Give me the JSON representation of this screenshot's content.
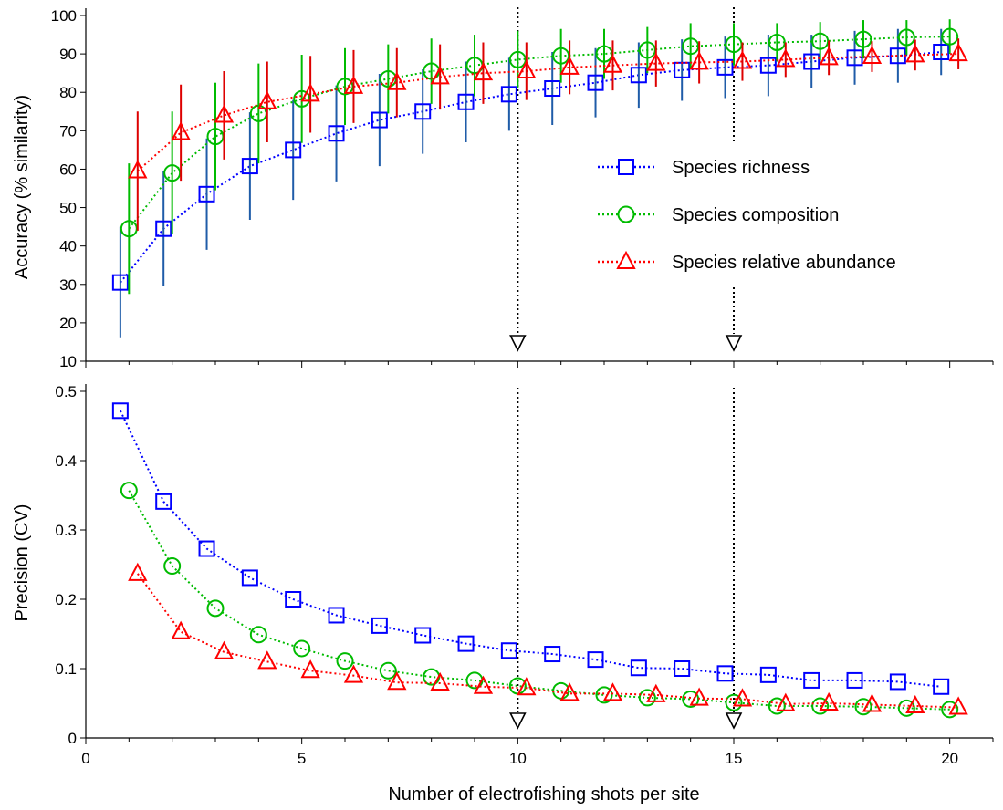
{
  "chart_data": [
    {
      "type": "scatter",
      "panel": "top",
      "ylabel": "Accuracy (% similarity)",
      "xlabel": "",
      "xlim": [
        0,
        21
      ],
      "ylim": [
        10,
        100
      ],
      "xticks": [
        0,
        5,
        10,
        15,
        20
      ],
      "yticks": [
        10,
        20,
        30,
        40,
        50,
        60,
        70,
        80,
        90,
        100
      ],
      "reference_lines_x": [
        10,
        15
      ],
      "legend_position": "right",
      "series": [
        {
          "name": "Species richness",
          "color": "#0000ff",
          "error_color": "#1f5ca8",
          "marker": "square",
          "x": [
            0.8,
            1.8,
            2.8,
            3.8,
            4.8,
            5.8,
            6.8,
            7.8,
            8.8,
            9.8,
            10.8,
            11.8,
            12.8,
            13.8,
            14.8,
            15.8,
            16.8,
            17.8,
            18.8,
            19.8
          ],
          "y": [
            30.5,
            44.5,
            53.5,
            60.8,
            65.0,
            69.3,
            72.8,
            75.0,
            77.5,
            79.5,
            81.0,
            82.5,
            84.5,
            85.8,
            86.5,
            87.0,
            88.0,
            89.0,
            89.5,
            90.5
          ],
          "err": [
            14.5,
            15.0,
            14.5,
            14.0,
            13.0,
            12.5,
            12.0,
            11.0,
            10.5,
            9.5,
            9.5,
            9.0,
            8.5,
            8.0,
            8.0,
            8.0,
            7.0,
            7.0,
            7.0,
            6.0
          ]
        },
        {
          "name": "Species composition",
          "color": "#00bb00",
          "error_color": "#00bb00",
          "marker": "circle",
          "x": [
            1.0,
            2.0,
            3.0,
            4.0,
            5.0,
            6.0,
            7.0,
            8.0,
            9.0,
            10.0,
            11.0,
            12.0,
            13.0,
            14.0,
            15.0,
            16.0,
            17.0,
            18.0,
            19.0,
            20.0
          ],
          "y": [
            44.5,
            59.0,
            68.5,
            74.5,
            78.3,
            81.5,
            83.5,
            85.5,
            87.0,
            88.5,
            89.5,
            90.0,
            91.0,
            92.0,
            92.5,
            93.0,
            93.3,
            93.8,
            94.3,
            94.5
          ],
          "err": [
            17.0,
            16.0,
            14.0,
            13.0,
            11.5,
            10.0,
            9.0,
            8.5,
            8.0,
            7.5,
            7.0,
            6.5,
            6.0,
            6.0,
            5.5,
            5.0,
            5.0,
            5.0,
            4.5,
            4.5
          ]
        },
        {
          "name": "Species relative abundance",
          "color": "#ff0000",
          "error_color": "#dd0000",
          "marker": "triangle",
          "x": [
            1.2,
            2.2,
            3.2,
            4.2,
            5.2,
            6.2,
            7.2,
            8.2,
            9.2,
            10.2,
            11.2,
            12.2,
            13.2,
            14.2,
            15.2,
            16.2,
            17.2,
            18.2,
            19.2,
            20.2
          ],
          "y": [
            59.5,
            69.5,
            74.0,
            77.5,
            79.5,
            81.5,
            82.5,
            84.0,
            85.0,
            85.5,
            86.5,
            87.0,
            87.5,
            87.8,
            88.0,
            88.5,
            89.0,
            89.3,
            89.7,
            90.0
          ],
          "err": [
            15.5,
            12.5,
            11.5,
            10.5,
            10.0,
            9.5,
            9.0,
            8.5,
            8.0,
            7.5,
            7.0,
            6.5,
            6.0,
            5.5,
            5.0,
            4.5,
            4.5,
            4.0,
            4.0,
            4.0
          ]
        }
      ]
    },
    {
      "type": "scatter",
      "panel": "bottom",
      "ylabel": "Precision (CV)",
      "xlabel": "Number of electrofishing shots per site",
      "xlim": [
        0,
        21
      ],
      "ylim": [
        0,
        0.5
      ],
      "xticks": [
        0,
        5,
        10,
        15,
        20
      ],
      "yticks": [
        0,
        0.1,
        0.2,
        0.3,
        0.4,
        0.5
      ],
      "ytick_labels": [
        "0",
        "0.1",
        "0.2",
        "0.3",
        "0.4",
        "0.5"
      ],
      "reference_lines_x": [
        10,
        15
      ],
      "series": [
        {
          "name": "Species richness",
          "color": "#0000ff",
          "marker": "square",
          "x": [
            0.8,
            1.8,
            2.8,
            3.8,
            4.8,
            5.8,
            6.8,
            7.8,
            8.8,
            9.8,
            10.8,
            11.8,
            12.8,
            13.8,
            14.8,
            15.8,
            16.8,
            17.8,
            18.8,
            19.8
          ],
          "y": [
            0.472,
            0.341,
            0.273,
            0.231,
            0.2,
            0.177,
            0.162,
            0.148,
            0.136,
            0.126,
            0.121,
            0.113,
            0.101,
            0.1,
            0.093,
            0.091,
            0.083,
            0.083,
            0.081,
            0.074
          ]
        },
        {
          "name": "Species composition",
          "color": "#00bb00",
          "marker": "circle",
          "x": [
            1.0,
            2.0,
            3.0,
            4.0,
            5.0,
            6.0,
            7.0,
            8.0,
            9.0,
            10.0,
            11.0,
            12.0,
            13.0,
            14.0,
            15.0,
            16.0,
            17.0,
            18.0,
            19.0,
            20.0
          ],
          "y": [
            0.357,
            0.248,
            0.187,
            0.149,
            0.129,
            0.111,
            0.097,
            0.088,
            0.083,
            0.075,
            0.068,
            0.062,
            0.058,
            0.056,
            0.051,
            0.046,
            0.046,
            0.045,
            0.043,
            0.041
          ]
        },
        {
          "name": "Species relative abundance",
          "color": "#ff0000",
          "marker": "triangle",
          "x": [
            1.2,
            2.2,
            3.2,
            4.2,
            5.2,
            6.2,
            7.2,
            8.2,
            9.2,
            10.2,
            11.2,
            12.2,
            13.2,
            14.2,
            15.2,
            16.2,
            17.2,
            18.2,
            19.2,
            20.2
          ],
          "y": [
            0.237,
            0.153,
            0.124,
            0.11,
            0.097,
            0.09,
            0.08,
            0.079,
            0.074,
            0.072,
            0.064,
            0.064,
            0.062,
            0.057,
            0.056,
            0.049,
            0.05,
            0.048,
            0.046,
            0.044
          ]
        }
      ]
    }
  ]
}
